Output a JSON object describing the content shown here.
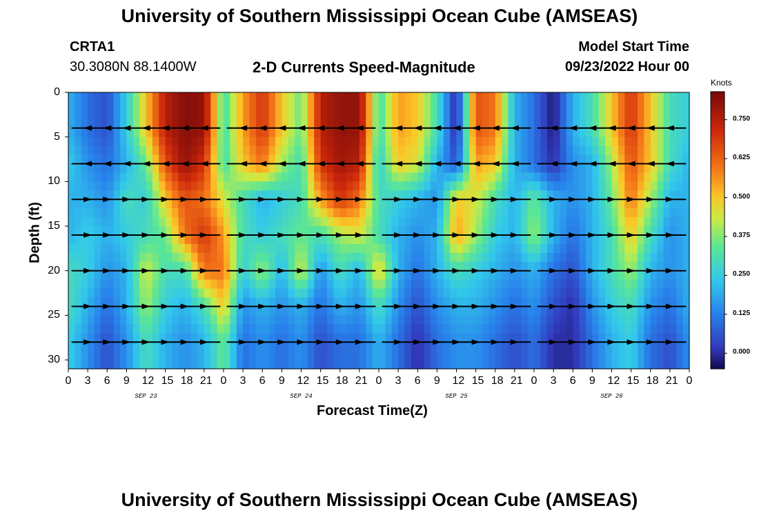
{
  "header": {
    "title": "University of Southern Mississippi Ocean Cube (AMSEAS)",
    "station": "CRTA1",
    "coords": "30.3080N  88.1400W",
    "subtitle": "2-D Currents Speed-Magnitude",
    "model_start_label": "Model Start Time",
    "model_start_value": "09/23/2022 Hour 00",
    "footer_title": "University of Southern Mississippi Ocean Cube (AMSEAS)"
  },
  "chart_data": {
    "type": "heatmap",
    "title": "2-D Currents Speed-Magnitude",
    "xlabel": "Forecast Time(Z)",
    "ylabel": "Depth (ft)",
    "x_ticks": [
      "0",
      "3",
      "6",
      "9",
      "12",
      "15",
      "18",
      "21",
      "0",
      "3",
      "6",
      "9",
      "12",
      "15",
      "18",
      "21",
      "0",
      "3",
      "6",
      "9",
      "12",
      "15",
      "18",
      "21",
      "0",
      "3",
      "6",
      "9",
      "12",
      "15",
      "18",
      "21",
      "0"
    ],
    "x_range_hours": [
      0,
      96
    ],
    "date_labels": [
      "SEP 23",
      "SEP 24",
      "SEP 25",
      "SEP 26"
    ],
    "y_ticks": [
      "0",
      "5",
      "10",
      "15",
      "20",
      "25",
      "30"
    ],
    "ylim": [
      31,
      0
    ],
    "colorbar": {
      "label": "Knots",
      "ticks": [
        "0.750",
        "0.625",
        "0.500",
        "0.375",
        "0.250",
        "0.125",
        "0.000"
      ],
      "tick_values": [
        0.75,
        0.625,
        0.5,
        0.375,
        0.25,
        0.125,
        0.0
      ],
      "range": [
        -0.05,
        0.84
      ]
    },
    "depths_ft": [
      4,
      8,
      12,
      16,
      20,
      24,
      28
    ],
    "speed_profile_hours": [
      0,
      3,
      6,
      9,
      12,
      15,
      18,
      21,
      24,
      27,
      30,
      33,
      36,
      39,
      42,
      45,
      48,
      51,
      54,
      57,
      60,
      63,
      66,
      69,
      72,
      75,
      78,
      81,
      84,
      87,
      90,
      93,
      96
    ],
    "speed_knots": [
      [
        0.2,
        0.1,
        0.05,
        0.25,
        0.5,
        0.75,
        0.82,
        0.8,
        0.3,
        0.55,
        0.7,
        0.5,
        0.35,
        0.75,
        0.8,
        0.8,
        0.3,
        0.55,
        0.5,
        0.3,
        -0.02,
        0.65,
        0.6,
        0.2,
        0.1,
        -0.03,
        0.2,
        0.3,
        0.5,
        0.7,
        0.5,
        0.3,
        0.25
      ],
      [
        0.25,
        0.15,
        0.1,
        0.2,
        0.35,
        0.65,
        0.8,
        0.7,
        0.3,
        0.5,
        0.6,
        0.4,
        0.3,
        0.7,
        0.78,
        0.75,
        0.25,
        0.5,
        0.45,
        0.2,
        0.05,
        0.55,
        0.5,
        0.2,
        0.1,
        0.0,
        0.15,
        0.2,
        0.4,
        0.65,
        0.5,
        0.3,
        0.2
      ],
      [
        0.2,
        0.2,
        0.15,
        0.3,
        0.25,
        0.5,
        0.65,
        0.6,
        0.45,
        0.3,
        0.2,
        0.25,
        0.3,
        0.55,
        0.7,
        0.6,
        0.3,
        0.25,
        0.2,
        0.15,
        0.5,
        0.45,
        0.3,
        0.2,
        0.35,
        0.2,
        0.15,
        0.2,
        0.35,
        0.6,
        0.4,
        0.2,
        0.2
      ],
      [
        0.2,
        0.25,
        0.2,
        0.25,
        0.3,
        0.35,
        0.6,
        0.7,
        0.55,
        0.3,
        0.25,
        0.3,
        0.35,
        0.3,
        0.4,
        0.45,
        0.3,
        0.2,
        0.15,
        0.2,
        0.55,
        0.4,
        0.25,
        0.2,
        0.4,
        0.2,
        0.1,
        0.2,
        0.3,
        0.5,
        0.3,
        0.15,
        0.2
      ],
      [
        0.3,
        0.25,
        0.15,
        0.2,
        0.45,
        0.3,
        0.3,
        0.6,
        0.6,
        0.25,
        0.4,
        0.2,
        0.45,
        0.15,
        0.3,
        0.2,
        0.5,
        0.2,
        0.1,
        0.2,
        0.3,
        0.25,
        0.2,
        0.15,
        0.2,
        0.1,
        0.05,
        0.2,
        0.3,
        0.4,
        0.2,
        0.15,
        0.2
      ],
      [
        0.3,
        0.2,
        0.1,
        0.2,
        0.4,
        0.25,
        0.2,
        0.3,
        0.5,
        0.15,
        0.2,
        0.15,
        0.2,
        0.1,
        0.2,
        0.15,
        0.3,
        0.15,
        0.05,
        0.15,
        0.2,
        0.2,
        0.15,
        0.1,
        0.15,
        0.05,
        0.0,
        0.15,
        0.25,
        0.3,
        0.15,
        0.1,
        0.2
      ],
      [
        0.25,
        0.15,
        0.05,
        0.15,
        0.3,
        0.2,
        0.15,
        0.2,
        0.35,
        0.1,
        0.15,
        0.1,
        0.15,
        0.05,
        0.1,
        0.1,
        0.2,
        0.1,
        0.0,
        0.1,
        0.15,
        0.15,
        0.1,
        0.05,
        0.1,
        0.0,
        0.0,
        0.1,
        0.2,
        0.25,
        0.1,
        0.05,
        0.15
      ]
    ]
  }
}
